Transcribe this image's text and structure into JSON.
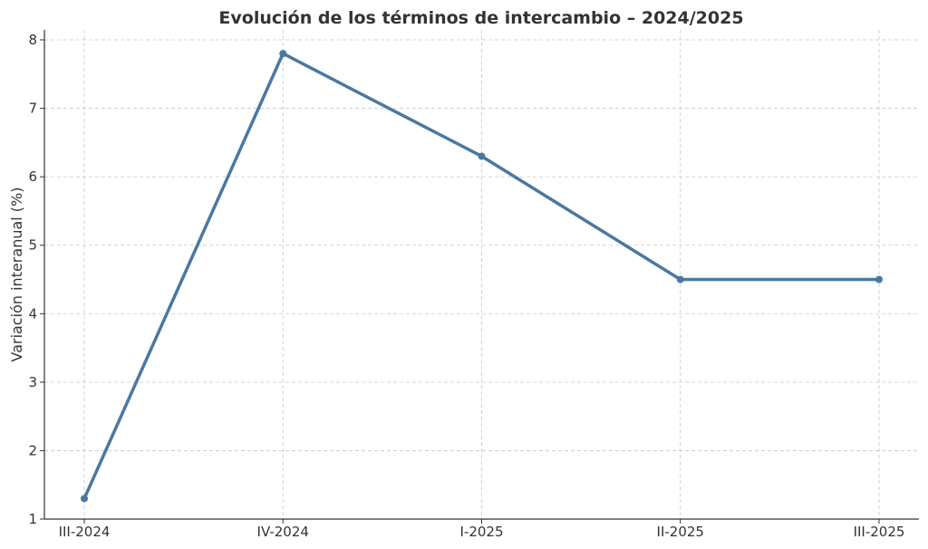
{
  "chart_data": {
    "type": "line",
    "title": "Evolución de los términos de intercambio – 2024/2025",
    "xlabel": "",
    "ylabel": "Variación interanual (%)",
    "categories": [
      "III-2024",
      "IV-2024",
      "I-2025",
      "II-2025",
      "III-2025"
    ],
    "series": [
      {
        "values": [
          1.3,
          7.8,
          6.3,
          4.5,
          4.5
        ],
        "color": "#4a78a0"
      }
    ],
    "ylim": [
      1,
      8.1
    ],
    "yticks": [
      1,
      2,
      3,
      4,
      5,
      6,
      7,
      8
    ],
    "grid": true,
    "legend": "none"
  }
}
